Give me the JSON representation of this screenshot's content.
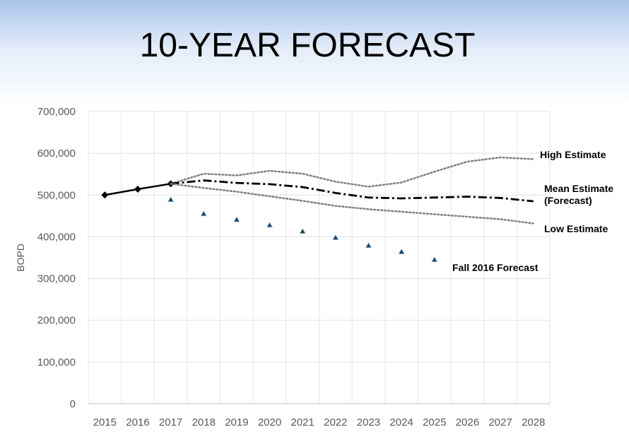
{
  "chart_data": {
    "type": "line",
    "title": "10-YEAR FORECAST",
    "y_label": "BOPD",
    "categories": [
      "2015",
      "2016",
      "2017",
      "2018",
      "2019",
      "2020",
      "2021",
      "2022",
      "2023",
      "2024",
      "2025",
      "2026",
      "2027",
      "2028"
    ],
    "ylim": [
      0,
      700000
    ],
    "yticks": [
      0,
      {
        "value": 100000,
        "label": "100,000"
      },
      {
        "value": 200000,
        "label": "200,000"
      },
      {
        "value": 300000,
        "label": "300,000"
      },
      {
        "value": 400000,
        "label": "400,000"
      },
      {
        "value": 500000,
        "label": "500,000"
      },
      {
        "value": 600000,
        "label": "600,000"
      },
      {
        "value": 700000,
        "label": "700,000"
      }
    ],
    "grid": true,
    "series": [
      {
        "color": "#000000",
        "style": "solid-diamond",
        "values": [
          500000,
          514000,
          527000,
          null,
          null,
          null,
          null,
          null,
          null,
          null,
          null,
          null,
          null,
          null
        ]
      },
      {
        "name": "High Estimate",
        "color": "#808080",
        "style": "dotted",
        "values": [
          null,
          null,
          527000,
          551000,
          547000,
          558000,
          551000,
          532000,
          520000,
          530000,
          556000,
          580000,
          590000,
          586000
        ]
      },
      {
        "name": "Mean Estimate (Forecast)",
        "color": "#000000",
        "style": "dashdot",
        "values": [
          null,
          null,
          527000,
          535000,
          529000,
          526000,
          519000,
          505000,
          494000,
          492000,
          494000,
          496000,
          493000,
          485000
        ]
      },
      {
        "name": "Low Estimate",
        "color": "#808080",
        "style": "dotted",
        "values": [
          null,
          null,
          527000,
          517000,
          508000,
          497000,
          486000,
          474000,
          466000,
          460000,
          454000,
          448000,
          442000,
          432000
        ]
      },
      {
        "name": "Fall 2016 Forecast",
        "color": "#1f3f5f",
        "style": "triangles",
        "values": [
          null,
          null,
          489000,
          455000,
          441000,
          428000,
          413000,
          398000,
          379000,
          364000,
          345000,
          null,
          null,
          null
        ]
      }
    ]
  }
}
